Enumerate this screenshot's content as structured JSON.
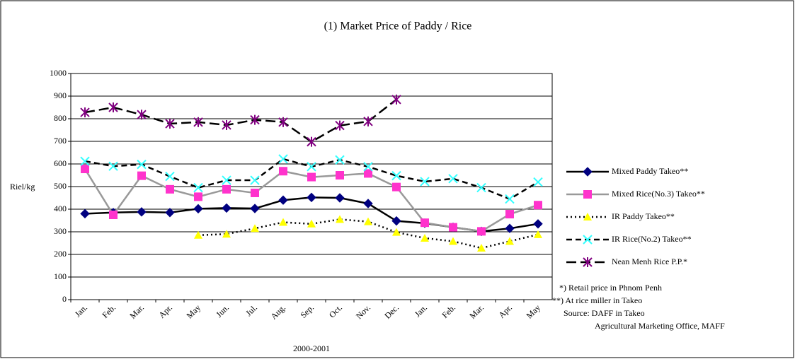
{
  "chart_data": {
    "type": "line",
    "title": "(1) Market Price of Paddy / Rice",
    "y_label": "Riel/kg",
    "x_label": "2000-2001",
    "categories": [
      "Jan.",
      "Feb.",
      "Mar.",
      "Apr.",
      "May",
      "Jun.",
      "Jul.",
      "Aug.",
      "Sep.",
      "Oct.",
      "Nov.",
      "Dec.",
      "Jan.",
      "Feb.",
      "Mar.",
      "Apr.",
      "May"
    ],
    "ylim": [
      0,
      1000
    ],
    "yticks": [
      0,
      100,
      200,
      300,
      400,
      500,
      600,
      700,
      800,
      900,
      1000
    ],
    "grid": true,
    "legend": "right",
    "series": [
      {
        "name": "Mixed Paddy Takeo**",
        "color": "#000000",
        "marker": "diamond",
        "marker_color": "#000080",
        "style": "solid",
        "values": [
          380,
          385,
          388,
          385,
          402,
          405,
          403,
          440,
          452,
          450,
          425,
          348,
          338,
          320,
          302,
          315,
          335
        ]
      },
      {
        "name": "Mixed Rice(No.3) Takeo**",
        "color": "#999999",
        "marker": "square",
        "marker_color": "#ff33cc",
        "style": "solid",
        "values": [
          578,
          375,
          548,
          488,
          455,
          488,
          472,
          568,
          542,
          550,
          558,
          498,
          340,
          320,
          302,
          378,
          418
        ]
      },
      {
        "name": "IR Paddy Takeo**",
        "color": "#000000",
        "marker": "triangle",
        "marker_color": "#ffff00",
        "style": "dotted",
        "values": [
          null,
          null,
          null,
          null,
          285,
          290,
          315,
          342,
          335,
          355,
          345,
          298,
          272,
          258,
          228,
          258,
          288
        ]
      },
      {
        "name": "IR Rice(No.2) Takeo**",
        "color": "#000000",
        "marker": "cross",
        "marker_color": "#33ffff",
        "style": "dashed",
        "values": [
          612,
          590,
          598,
          545,
          495,
          528,
          528,
          622,
          588,
          618,
          588,
          548,
          522,
          535,
          495,
          445,
          520
        ]
      },
      {
        "name": "Nean Menh Rice P.P.*",
        "color": "#000000",
        "marker": "asterisk",
        "marker_color": "#800080",
        "style": "longdash",
        "values": [
          828,
          850,
          818,
          778,
          785,
          772,
          795,
          785,
          698,
          770,
          788,
          885,
          null,
          null,
          null,
          null,
          null
        ]
      }
    ],
    "notes": [
      "*) Retail price in Phnom Penh",
      "**) At rice miller in Takeo",
      "Source: DAFF in Takeo",
      "Agricultural Marketing Office, MAFF"
    ]
  }
}
